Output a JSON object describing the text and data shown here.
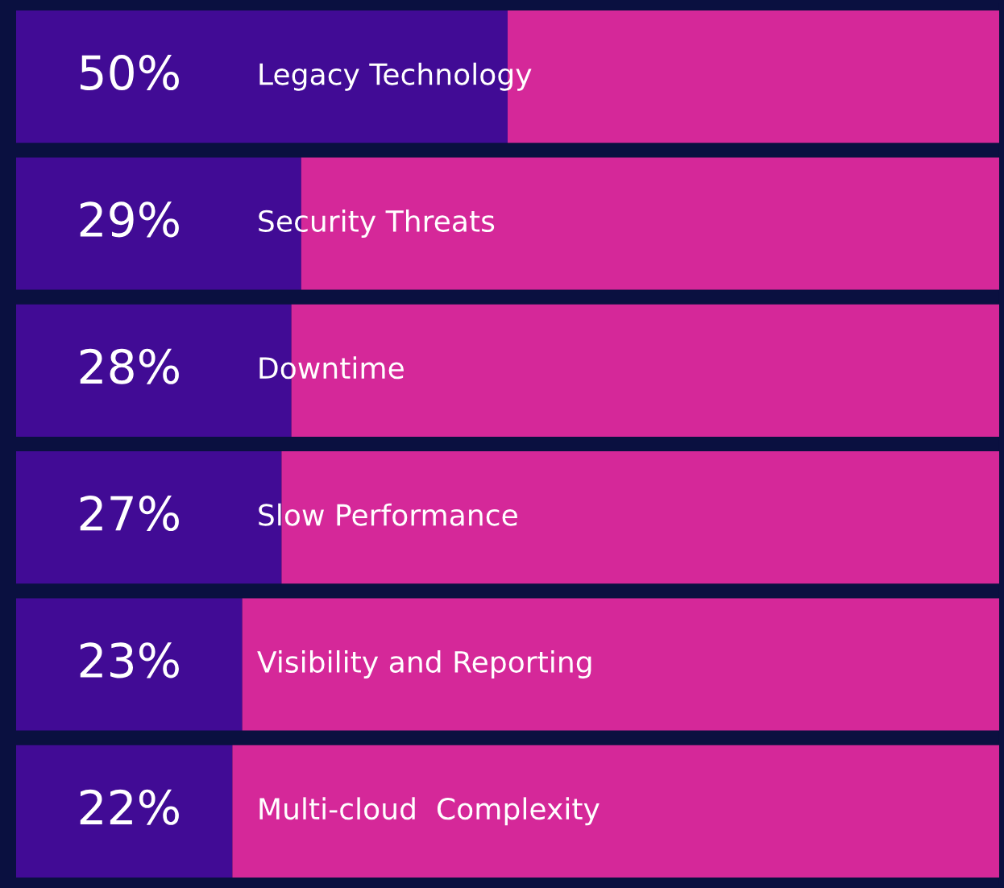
{
  "chart_data": {
    "type": "bar",
    "orientation": "horizontal",
    "stacked": true,
    "categories": [
      "Legacy Technology",
      "Security Threats",
      "Downtime",
      "Slow Performance",
      "Visibility and Reporting",
      "Multi-cloud  Complexity"
    ],
    "series": [
      {
        "color": "#410b95",
        "values": [
          50,
          29,
          28,
          27,
          23,
          22
        ],
        "value_labels": [
          "50%",
          "29%",
          "28%",
          "27%",
          "23%",
          "22%"
        ]
      },
      {
        "color": "#d52899",
        "values": [
          50,
          71,
          72,
          73,
          77,
          78
        ]
      }
    ],
    "xlim": [
      0,
      100
    ]
  }
}
